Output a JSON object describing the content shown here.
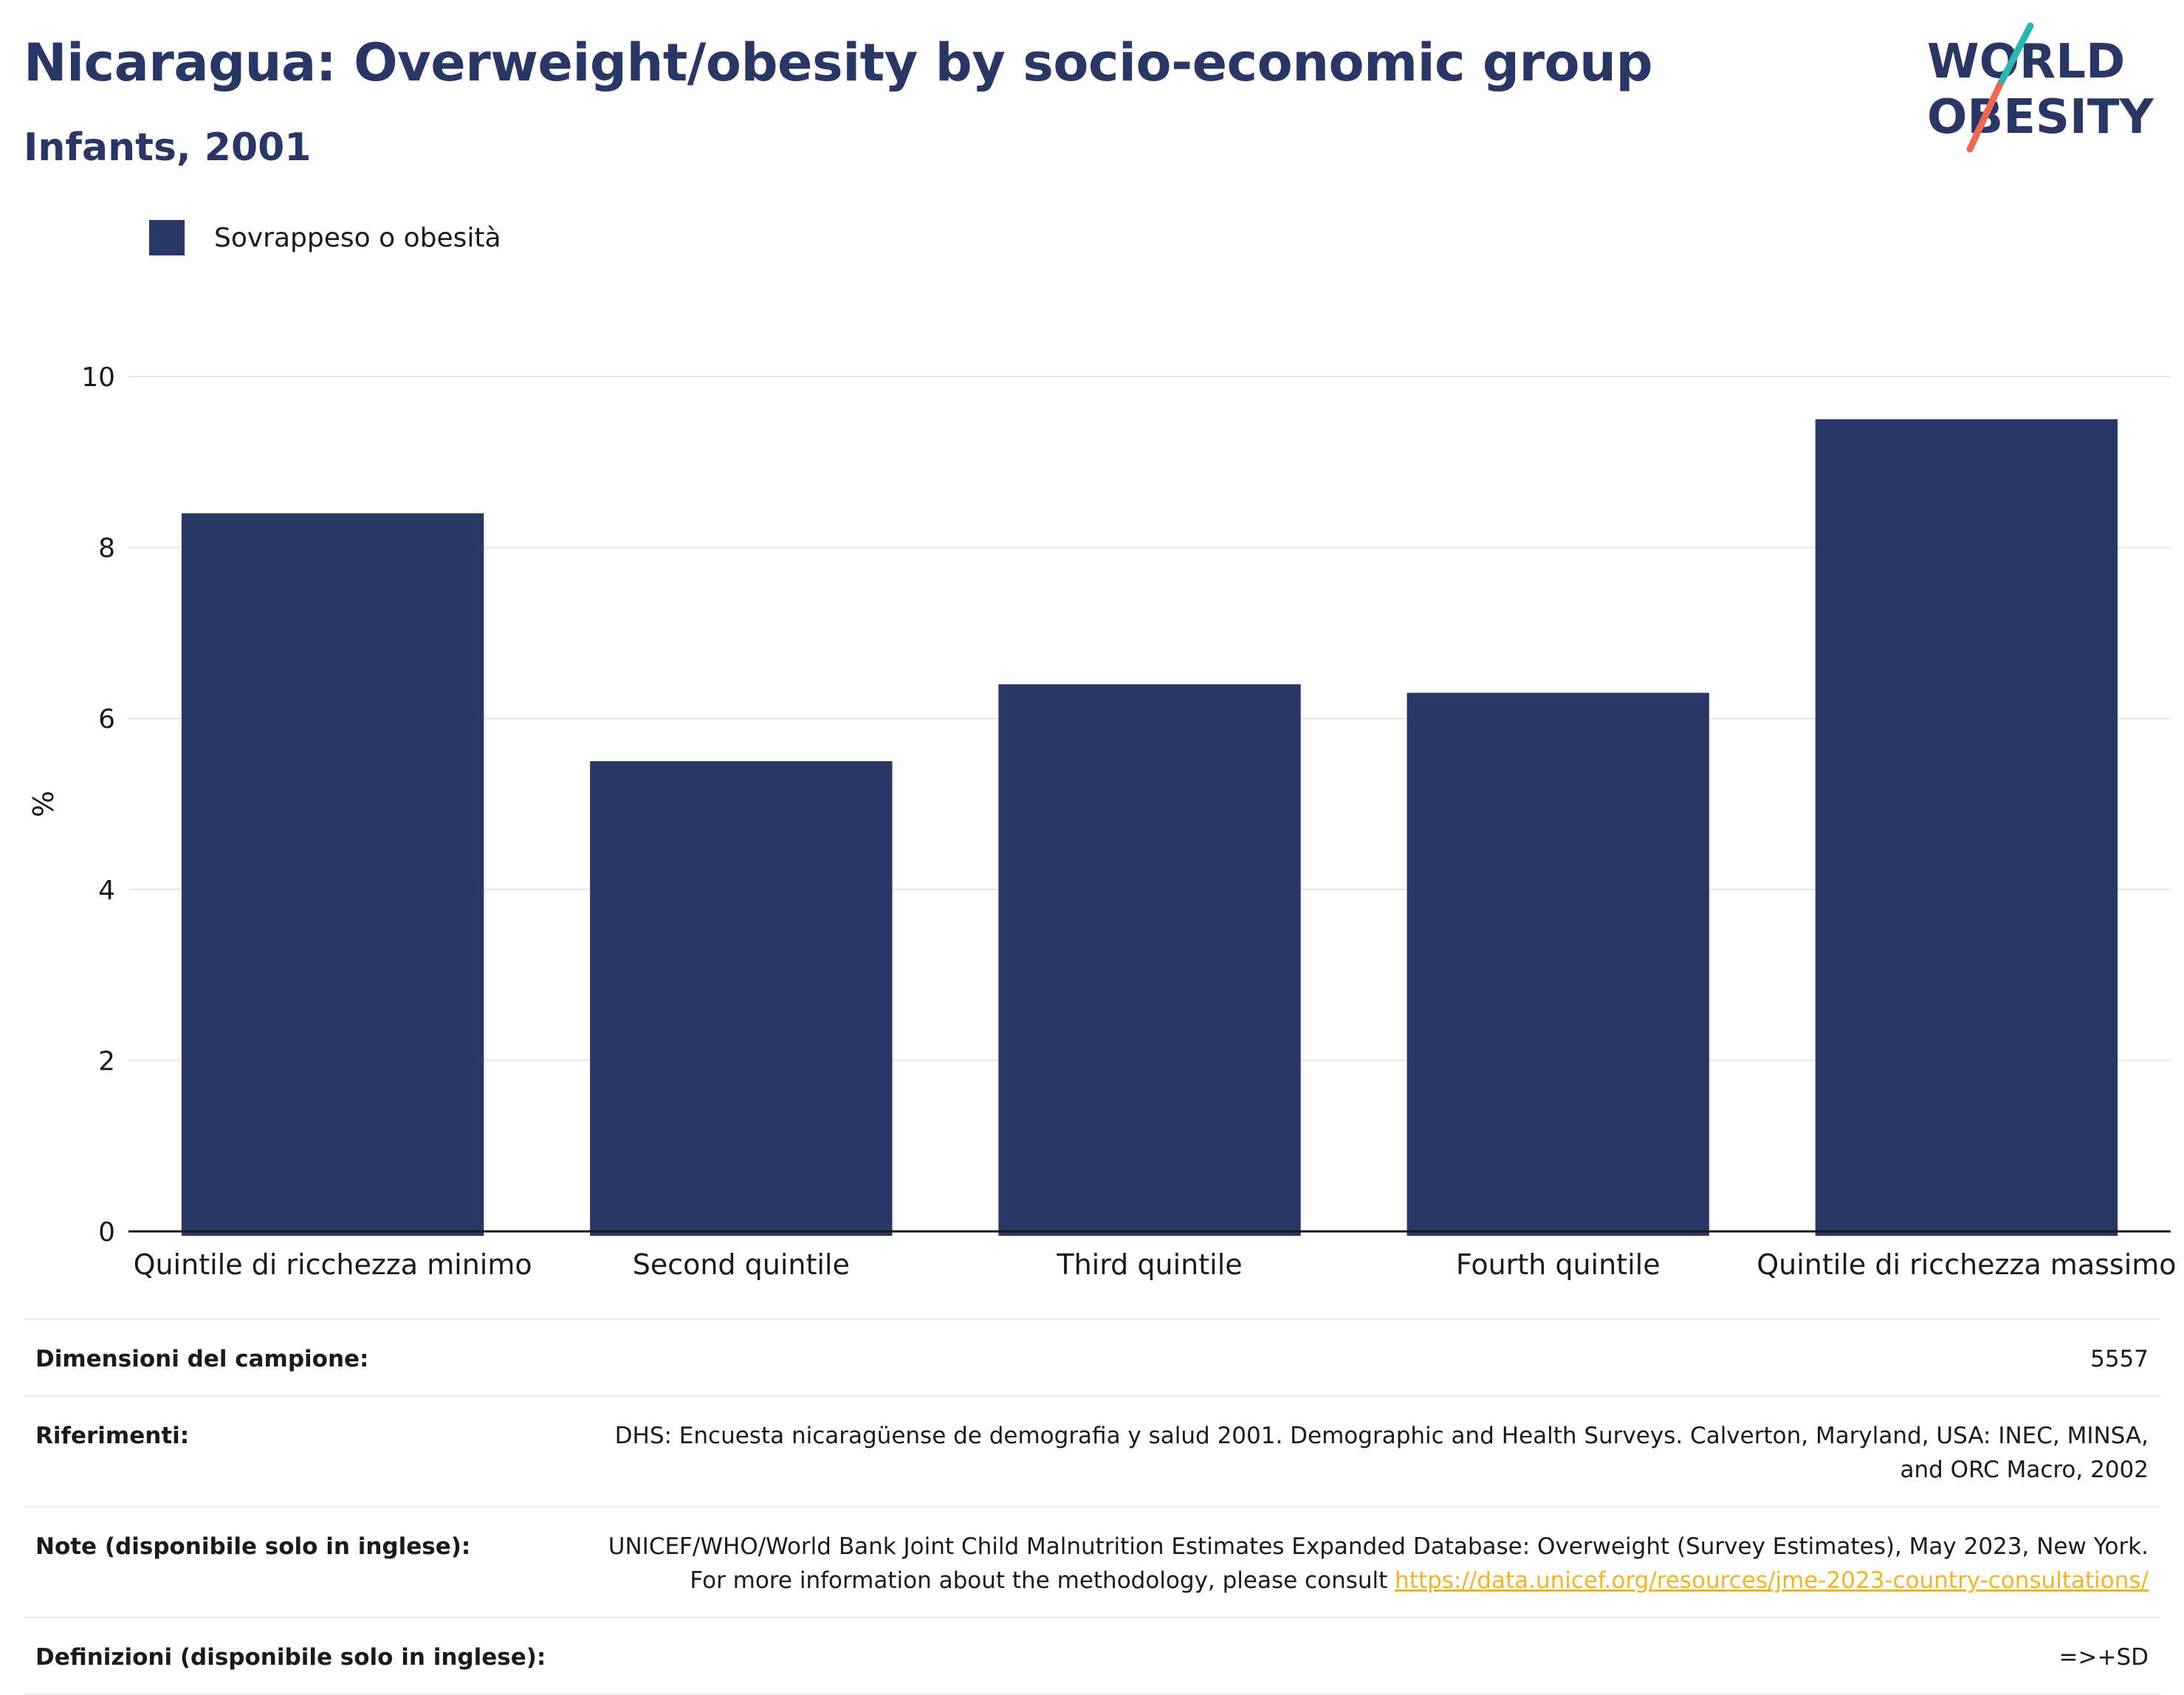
{
  "header": {
    "title": "Nicaragua: Overweight/obesity by socio-economic group",
    "subtitle": "Infants, 2001"
  },
  "logo": {
    "line1": "WORLD",
    "line2": "OBESITY"
  },
  "colors": {
    "bar": "#2a3663",
    "grid": "#e6e6ee",
    "axis": "#1a1a1a",
    "logo_teal": "#2bb5b0",
    "logo_coral": "#ec6a55",
    "link": "#f0b429"
  },
  "chart_data": {
    "type": "bar",
    "categories": [
      "Quintile di ricchezza minimo",
      "Second quintile",
      "Third quintile",
      "Fourth quintile",
      "Quintile di ricchezza massimo"
    ],
    "series": [
      {
        "name": "Sovrappeso o obesità",
        "values": [
          8.4,
          5.5,
          6.4,
          6.3,
          9.5
        ]
      }
    ],
    "ylabel": "%",
    "ylim": [
      0,
      10
    ],
    "yticks": [
      0,
      2,
      4,
      6,
      8,
      10
    ],
    "grid": true,
    "legend_position": "top-left"
  },
  "info": {
    "rows": [
      {
        "label": "Dimensioni del campione:",
        "value": "5557"
      },
      {
        "label": "Riferimenti:",
        "value": "DHS: Encuesta nicaragüense de demografia y salud 2001. Demographic and Health Surveys. Calverton, Maryland, USA: INEC, MINSA, and ORC Macro, 2002"
      },
      {
        "label": "Note (disponibile solo in inglese):",
        "value": "UNICEF/WHO/World Bank Joint Child Malnutrition Estimates Expanded Database: Overweight (Survey Estimates), May 2023, New York. For more information about the methodology, please consult",
        "link": "https://data.unicef.org/resources/jme-2023-country-consultations/"
      },
      {
        "label": "Definizioni (disponibile solo in inglese):",
        "value": "=>+SD"
      }
    ]
  }
}
